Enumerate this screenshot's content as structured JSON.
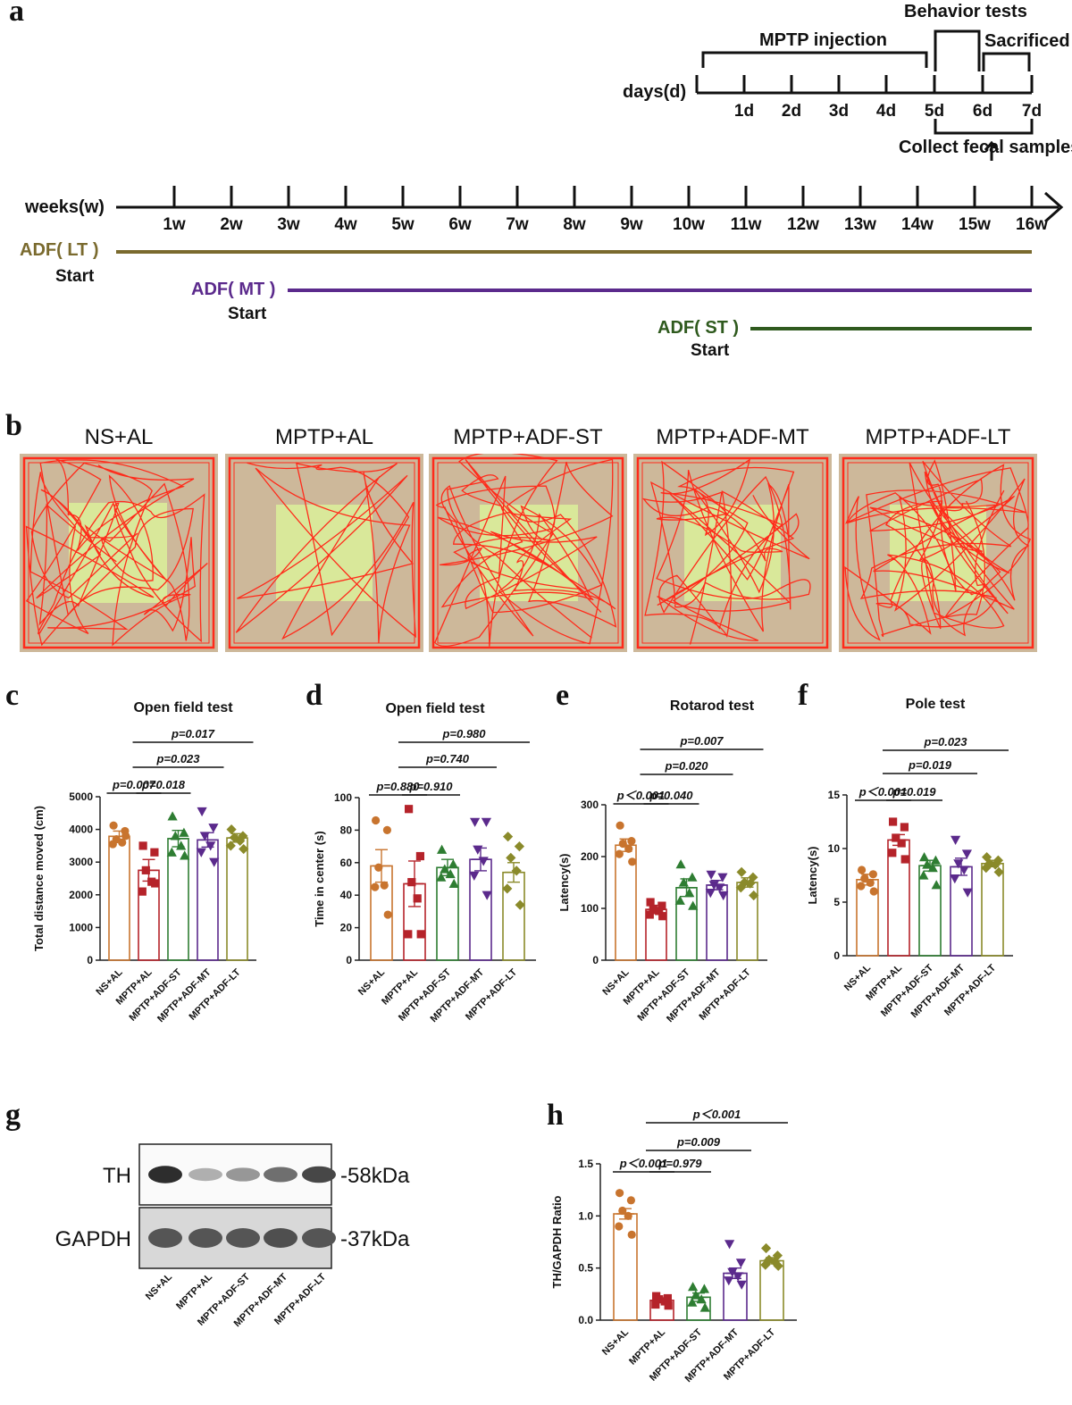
{
  "panels": [
    "a",
    "b",
    "c",
    "d",
    "e",
    "f",
    "g",
    "h"
  ],
  "timeline": {
    "days_label": "days(d)",
    "days": [
      "1d",
      "2d",
      "3d",
      "4d",
      "5d",
      "6d",
      "7d"
    ],
    "mptp_label": "MPTP injection",
    "behavior_label": "Behavior tests",
    "sacrificed_label": "Sacrificed",
    "fecal_label": "Collect fecal samples",
    "weeks_label": "weeks(w)",
    "weeks": [
      "1w",
      "2w",
      "3w",
      "4w",
      "5w",
      "6w",
      "7w",
      "8w",
      "9w",
      "10w",
      "11w",
      "12w",
      "13w",
      "14w",
      "15w",
      "16w"
    ],
    "regimens": [
      {
        "label": "ADF( LT )",
        "start": "Start",
        "color": "#7a6a2e",
        "start_week": 0
      },
      {
        "label": "ADF( MT )",
        "start": "Start",
        "color": "#5b2a8c",
        "start_week": 3
      },
      {
        "label": "ADF( ST )",
        "start": "Start",
        "color": "#2f5a1e",
        "start_week": 11
      }
    ]
  },
  "traces": {
    "titles": [
      "NS+AL",
      "MPTP+AL",
      "MPTP+ADF-ST",
      "MPTP+ADF-MT",
      "MPTP+ADF-LT"
    ],
    "colors": {
      "outer": "#cdb89a",
      "center": "#d9e89a",
      "track": "#ff2a1a"
    }
  },
  "groups": [
    "NS+AL",
    "MPTP+AL",
    "MPTP+ADF-ST",
    "MPTP+ADF-MT",
    "MPTP+ADF-LT"
  ],
  "group_colors": [
    "#c8742e",
    "#b5232a",
    "#2e7d32",
    "#5b2a8c",
    "#8a8a2a"
  ],
  "chart_data": [
    {
      "panel": "c",
      "type": "bar",
      "title": "Open field test",
      "ylabel": "Total distance moved (cm)",
      "ylim": [
        0,
        5000
      ],
      "yticks": [
        0,
        1000,
        2000,
        3000,
        4000,
        5000
      ],
      "categories": [
        "NS+AL",
        "MPTP+AL",
        "MPTP+ADF-ST",
        "MPTP+ADF-MT",
        "MPTP+ADF-LT"
      ],
      "values": [
        3790,
        2750,
        3720,
        3680,
        3740
      ],
      "errors": [
        160,
        330,
        250,
        220,
        130
      ],
      "points": [
        [
          4120,
          3950,
          3700,
          3600,
          3550,
          3800
        ],
        [
          3500,
          3300,
          2750,
          2400,
          2100,
          2350
        ],
        [
          4400,
          3900,
          3800,
          3500,
          3300,
          3200
        ],
        [
          4550,
          4050,
          3800,
          3500,
          3300,
          3000
        ],
        [
          4000,
          3800,
          3750,
          3650,
          3500,
          3400
        ]
      ],
      "comparisons": [
        {
          "text": "p=0.007",
          "from": 0,
          "to": 1,
          "level": 0
        },
        {
          "text": "p=0.018",
          "from": 1,
          "to": 2,
          "level": 0
        },
        {
          "text": "p=0.023",
          "from": 1,
          "to": 3,
          "level": 1
        },
        {
          "text": "p=0.017",
          "from": 1,
          "to": 4,
          "level": 2
        }
      ]
    },
    {
      "panel": "d",
      "type": "bar",
      "title": "Open field test",
      "ylabel": "Time in center (s)",
      "ylim": [
        0,
        100
      ],
      "yticks": [
        0,
        20,
        40,
        60,
        80,
        100
      ],
      "categories": [
        "NS+AL",
        "MPTP+AL",
        "MPTP+ADF-ST",
        "MPTP+ADF-MT",
        "MPTP+ADF-LT"
      ],
      "values": [
        58,
        47,
        57,
        62,
        54
      ],
      "errors": [
        10,
        14,
        5,
        7,
        6
      ],
      "points": [
        [
          86,
          80,
          57,
          46,
          45,
          28
        ],
        [
          93,
          64,
          48,
          38,
          16,
          16
        ],
        [
          68,
          59,
          56,
          53,
          51,
          47
        ],
        [
          85,
          85,
          68,
          61,
          52,
          40
        ],
        [
          76,
          70,
          63,
          55,
          44,
          34
        ]
      ],
      "comparisons": [
        {
          "text": "p=0.880",
          "from": 0,
          "to": 1,
          "level": 0
        },
        {
          "text": "p=0.910",
          "from": 1,
          "to": 2,
          "level": 0
        },
        {
          "text": "p=0.740",
          "from": 1,
          "to": 3,
          "level": 1
        },
        {
          "text": "p=0.980",
          "from": 1,
          "to": 4,
          "level": 2
        }
      ]
    },
    {
      "panel": "e",
      "type": "bar",
      "title": "Rotarod test",
      "ylabel": "Latency(s)",
      "ylim": [
        0,
        300
      ],
      "yticks": [
        0,
        100,
        200,
        300
      ],
      "categories": [
        "NS+AL",
        "MPTP+AL",
        "MPTP+ADF-ST",
        "MPTP+ADF-MT",
        "MPTP+ADF-LT"
      ],
      "values": [
        222,
        98,
        140,
        145,
        150
      ],
      "errors": [
        12,
        8,
        17,
        9,
        9
      ],
      "points": [
        [
          260,
          230,
          225,
          215,
          205,
          190
        ],
        [
          112,
          105,
          98,
          95,
          88,
          85
        ],
        [
          185,
          160,
          150,
          130,
          115,
          105
        ],
        [
          165,
          160,
          145,
          140,
          130,
          125
        ],
        [
          170,
          160,
          150,
          148,
          140,
          125
        ]
      ],
      "comparisons": [
        {
          "text": "p＜0.001",
          "from": 0,
          "to": 1,
          "level": 0
        },
        {
          "text": "p=0.040",
          "from": 1,
          "to": 2,
          "level": 0
        },
        {
          "text": "p=0.020",
          "from": 1,
          "to": 3,
          "level": 1
        },
        {
          "text": "p=0.007",
          "from": 1,
          "to": 4,
          "level": 2
        }
      ]
    },
    {
      "panel": "f",
      "type": "bar",
      "title": "Pole test",
      "ylabel": "Latency(s)",
      "ylim": [
        0,
        15
      ],
      "yticks": [
        0,
        5,
        10,
        15
      ],
      "categories": [
        "NS+AL",
        "MPTP+AL",
        "MPTP+ADF-ST",
        "MPTP+ADF-MT",
        "MPTP+ADF-LT"
      ],
      "values": [
        7.1,
        10.8,
        8.4,
        8.3,
        8.6
      ],
      "errors": [
        0.5,
        0.5,
        0.5,
        0.8,
        0.3
      ],
      "points": [
        [
          8.0,
          7.6,
          7.2,
          6.8,
          6.5,
          6.0
        ],
        [
          12.5,
          12.0,
          11.0,
          10.5,
          9.6,
          9.0
        ],
        [
          9.2,
          8.9,
          8.5,
          8.2,
          7.5,
          6.6
        ],
        [
          10.8,
          9.5,
          8.6,
          8.0,
          7.2,
          5.9
        ],
        [
          9.2,
          8.9,
          8.6,
          8.5,
          8.2,
          7.8
        ]
      ],
      "comparisons": [
        {
          "text": "p＜0.001",
          "from": 0,
          "to": 1,
          "level": 0
        },
        {
          "text": "p=0.019",
          "from": 1,
          "to": 2,
          "level": 0
        },
        {
          "text": "p=0.019",
          "from": 1,
          "to": 3,
          "level": 1
        },
        {
          "text": "p=0.023",
          "from": 1,
          "to": 4,
          "level": 2
        }
      ]
    },
    {
      "panel": "h",
      "type": "bar",
      "title": "",
      "ylabel": "TH/GAPDH Ratio",
      "ylim": [
        0,
        1.5
      ],
      "yticks": [
        0.0,
        0.5,
        1.0,
        1.5
      ],
      "ytick_labels": [
        "0.0",
        "0.5",
        "1.0",
        "1.5"
      ],
      "categories": [
        "NS+AL",
        "MPTP+AL",
        "MPTP+ADF-ST",
        "MPTP+ADF-MT",
        "MPTP+ADF-LT"
      ],
      "values": [
        1.02,
        0.19,
        0.22,
        0.45,
        0.57
      ],
      "errors": [
        0.05,
        0.02,
        0.04,
        0.05,
        0.03
      ],
      "points": [
        [
          1.22,
          1.15,
          1.05,
          1.0,
          0.9,
          0.82
        ],
        [
          0.23,
          0.21,
          0.2,
          0.18,
          0.15,
          0.14
        ],
        [
          0.32,
          0.3,
          0.24,
          0.2,
          0.17,
          0.12
        ],
        [
          0.73,
          0.55,
          0.46,
          0.42,
          0.38,
          0.34
        ],
        [
          0.69,
          0.62,
          0.58,
          0.56,
          0.53,
          0.52
        ]
      ],
      "comparisons": [
        {
          "text": "p＜0.001",
          "from": 0,
          "to": 1,
          "level": 0
        },
        {
          "text": "p=0.979",
          "from": 1,
          "to": 2,
          "level": 0
        },
        {
          "text": "p=0.009",
          "from": 1,
          "to": 3,
          "level": 1
        },
        {
          "text": "p＜0.001",
          "from": 1,
          "to": 4,
          "level": 2
        }
      ]
    }
  ],
  "western_blot": {
    "bands": [
      {
        "name": "TH",
        "size": "-58kDa",
        "intensity": [
          0.95,
          0.3,
          0.42,
          0.62,
          0.82
        ]
      },
      {
        "name": "GAPDH",
        "size": "-37kDa",
        "intensity": [
          0.75,
          0.75,
          0.75,
          0.78,
          0.75
        ]
      }
    ],
    "lanes": [
      "NS+AL",
      "MPTP+AL",
      "MPTP+ADF-ST",
      "MPTP+ADF-MT",
      "MPTP+ADF-LT"
    ]
  }
}
